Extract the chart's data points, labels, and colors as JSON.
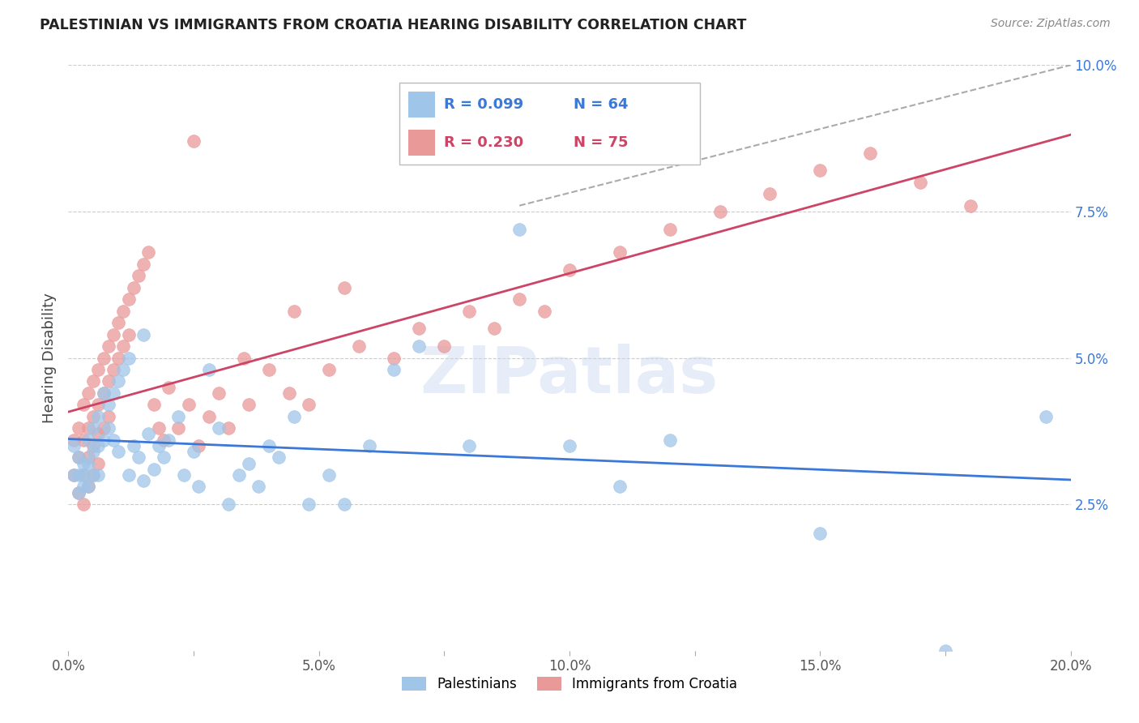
{
  "title": "PALESTINIAN VS IMMIGRANTS FROM CROATIA HEARING DISABILITY CORRELATION CHART",
  "source": "Source: ZipAtlas.com",
  "ylabel": "Hearing Disability",
  "xlim": [
    0.0,
    0.2
  ],
  "ylim": [
    0.0,
    0.1
  ],
  "xtick_vals": [
    0.0,
    0.025,
    0.05,
    0.075,
    0.1,
    0.125,
    0.15,
    0.175,
    0.2
  ],
  "xticklabels": [
    "0.0%",
    "",
    "5.0%",
    "",
    "10.0%",
    "",
    "15.0%",
    "",
    "20.0%"
  ],
  "ytick_vals": [
    0.025,
    0.05,
    0.075,
    0.1
  ],
  "ytick_labels": [
    "2.5%",
    "5.0%",
    "7.5%",
    "10.0%"
  ],
  "legend_blue_r": 0.099,
  "legend_blue_n": 64,
  "legend_pink_r": 0.23,
  "legend_pink_n": 75,
  "legend_blue_label": "Palestinians",
  "legend_pink_label": "Immigrants from Croatia",
  "blue_color": "#9fc5e8",
  "pink_color": "#ea9999",
  "line_blue_color": "#3c78d8",
  "line_pink_color": "#cc4466",
  "line_dashed_color": "#aaaaaa",
  "background_color": "#ffffff",
  "grid_color": "#cccccc",
  "blue_x": [
    0.001,
    0.001,
    0.002,
    0.002,
    0.002,
    0.003,
    0.003,
    0.003,
    0.004,
    0.004,
    0.004,
    0.005,
    0.005,
    0.005,
    0.006,
    0.006,
    0.006,
    0.007,
    0.007,
    0.008,
    0.008,
    0.009,
    0.009,
    0.01,
    0.01,
    0.011,
    0.012,
    0.012,
    0.013,
    0.014,
    0.015,
    0.015,
    0.016,
    0.017,
    0.018,
    0.019,
    0.02,
    0.022,
    0.023,
    0.025,
    0.026,
    0.028,
    0.03,
    0.032,
    0.034,
    0.036,
    0.038,
    0.04,
    0.042,
    0.045,
    0.048,
    0.052,
    0.055,
    0.06,
    0.065,
    0.07,
    0.08,
    0.09,
    0.1,
    0.12,
    0.15,
    0.175,
    0.195,
    0.11
  ],
  "blue_y": [
    0.035,
    0.03,
    0.033,
    0.03,
    0.027,
    0.032,
    0.03,
    0.028,
    0.036,
    0.032,
    0.028,
    0.038,
    0.034,
    0.03,
    0.04,
    0.035,
    0.03,
    0.044,
    0.036,
    0.042,
    0.038,
    0.044,
    0.036,
    0.046,
    0.034,
    0.048,
    0.05,
    0.03,
    0.035,
    0.033,
    0.054,
    0.029,
    0.037,
    0.031,
    0.035,
    0.033,
    0.036,
    0.04,
    0.03,
    0.034,
    0.028,
    0.048,
    0.038,
    0.025,
    0.03,
    0.032,
    0.028,
    0.035,
    0.033,
    0.04,
    0.025,
    0.03,
    0.025,
    0.035,
    0.048,
    0.052,
    0.035,
    0.072,
    0.035,
    0.036,
    0.02,
    0.0,
    0.04,
    0.028
  ],
  "pink_x": [
    0.001,
    0.001,
    0.002,
    0.002,
    0.002,
    0.003,
    0.003,
    0.003,
    0.003,
    0.004,
    0.004,
    0.004,
    0.004,
    0.005,
    0.005,
    0.005,
    0.005,
    0.006,
    0.006,
    0.006,
    0.006,
    0.007,
    0.007,
    0.007,
    0.008,
    0.008,
    0.008,
    0.009,
    0.009,
    0.01,
    0.01,
    0.011,
    0.011,
    0.012,
    0.012,
    0.013,
    0.014,
    0.015,
    0.016,
    0.017,
    0.018,
    0.019,
    0.02,
    0.022,
    0.024,
    0.026,
    0.028,
    0.03,
    0.032,
    0.036,
    0.04,
    0.044,
    0.048,
    0.052,
    0.058,
    0.065,
    0.07,
    0.075,
    0.08,
    0.085,
    0.09,
    0.095,
    0.1,
    0.11,
    0.12,
    0.13,
    0.14,
    0.15,
    0.16,
    0.17,
    0.18,
    0.055,
    0.045,
    0.035,
    0.025
  ],
  "pink_y": [
    0.036,
    0.03,
    0.038,
    0.033,
    0.027,
    0.042,
    0.036,
    0.03,
    0.025,
    0.044,
    0.038,
    0.033,
    0.028,
    0.046,
    0.04,
    0.035,
    0.03,
    0.048,
    0.042,
    0.037,
    0.032,
    0.05,
    0.044,
    0.038,
    0.052,
    0.046,
    0.04,
    0.054,
    0.048,
    0.056,
    0.05,
    0.058,
    0.052,
    0.06,
    0.054,
    0.062,
    0.064,
    0.066,
    0.068,
    0.042,
    0.038,
    0.036,
    0.045,
    0.038,
    0.042,
    0.035,
    0.04,
    0.044,
    0.038,
    0.042,
    0.048,
    0.044,
    0.042,
    0.048,
    0.052,
    0.05,
    0.055,
    0.052,
    0.058,
    0.055,
    0.06,
    0.058,
    0.065,
    0.068,
    0.072,
    0.075,
    0.078,
    0.082,
    0.085,
    0.08,
    0.076,
    0.062,
    0.058,
    0.05,
    0.087
  ]
}
